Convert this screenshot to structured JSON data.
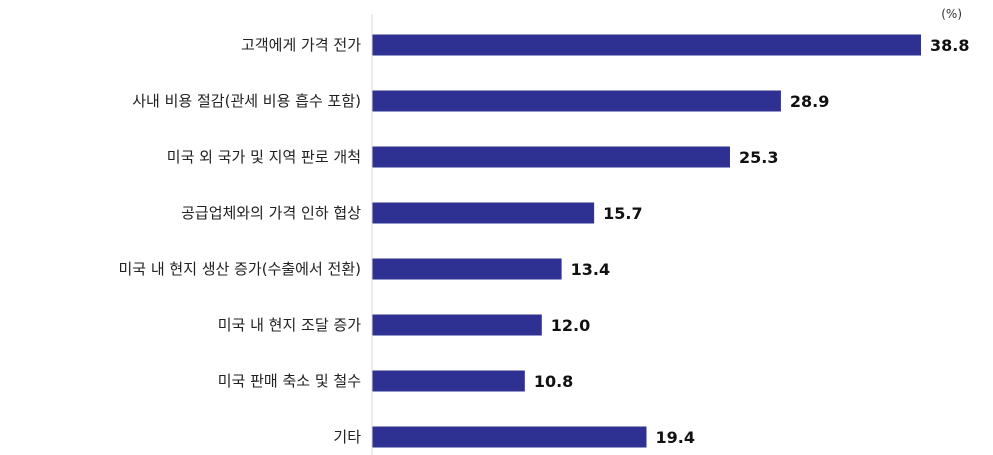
{
  "chart_data": {
    "type": "bar",
    "orientation": "horizontal",
    "unit": "(%)",
    "categories": [
      "고객에게 가격 전가",
      "사내 비용 절감(관세 비용 흡수 포함)",
      "미국 외 국가 및 지역 판로 개척",
      "공급업체와의 가격 인하 협상",
      "미국 내 현지 생산 증가(수출에서 전환)",
      "미국 내 현지 조달 증가",
      "미국 판매 축소 및 철수",
      "기타"
    ],
    "values": [
      38.8,
      28.9,
      25.3,
      15.7,
      13.4,
      12.0,
      10.8,
      19.4
    ],
    "value_labels": [
      "38.8",
      "28.9",
      "25.3",
      "15.7",
      "13.4",
      "12.0",
      "10.8",
      "19.4"
    ],
    "xlim": [
      0,
      42
    ],
    "bar_color": "#2e3192",
    "axis_color": "#d9d9d9",
    "grid": false,
    "legend": "none"
  }
}
